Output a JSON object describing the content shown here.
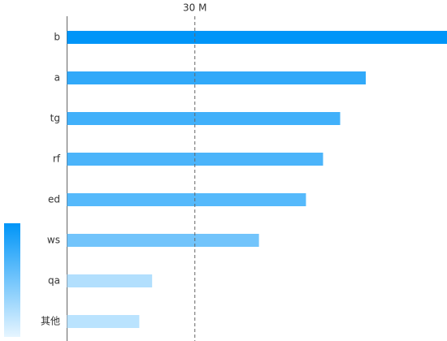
{
  "chart_data": {
    "type": "bar",
    "orientation": "horizontal",
    "categories": [
      "b",
      "a",
      "tg",
      "rf",
      "ed",
      "ws",
      "qa",
      "其他"
    ],
    "values": [
      89,
      70,
      64,
      60,
      56,
      45,
      20,
      17
    ],
    "xlim": [
      0,
      89
    ],
    "color_range": [
      "#e6f5ff",
      "#0095f8"
    ],
    "reference_line": {
      "value": 30,
      "label": "30 M"
    }
  }
}
